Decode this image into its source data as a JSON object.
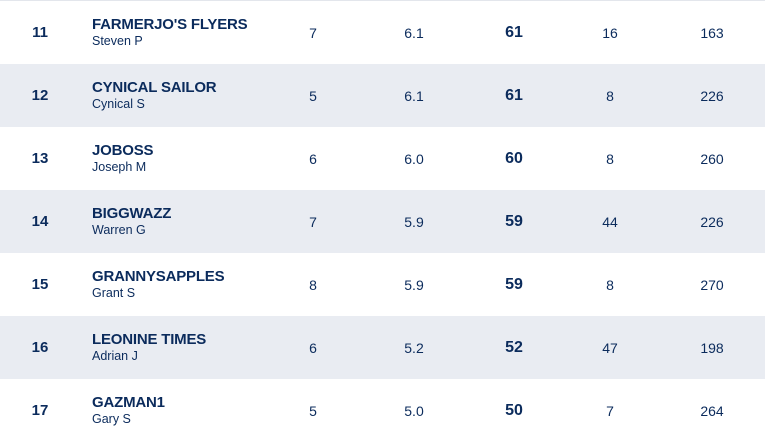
{
  "table": {
    "rows": [
      [
        "11",
        "FARMERJO'S FLYERS",
        "Steven P",
        "7",
        "6.1",
        "61",
        "16",
        "163"
      ],
      [
        "12",
        "CYNICAL SAILOR",
        "Cynical S",
        "5",
        "6.1",
        "61",
        "8",
        "226"
      ],
      [
        "13",
        "JOBOSS",
        "Joseph M",
        "6",
        "6.0",
        "60",
        "8",
        "260"
      ],
      [
        "14",
        "BIGGWAZZ",
        "Warren G",
        "7",
        "5.9",
        "59",
        "44",
        "226"
      ],
      [
        "15",
        "GRANNYSAPPLES",
        "Grant S",
        "8",
        "5.9",
        "59",
        "8",
        "270"
      ],
      [
        "16",
        "LEONINE TIMES",
        "Adrian J",
        "6",
        "5.2",
        "52",
        "47",
        "198"
      ],
      [
        "17",
        "GAZMAN1",
        "Gary S",
        "5",
        "5.0",
        "50",
        "7",
        "264"
      ]
    ]
  }
}
